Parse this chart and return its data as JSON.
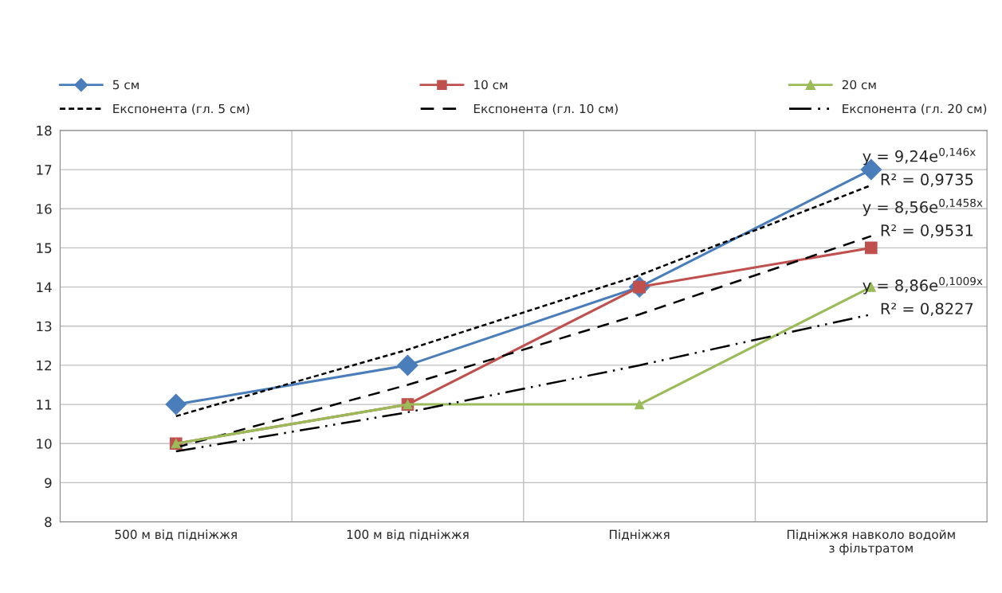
{
  "chart_data": {
    "type": "line",
    "categories": [
      "500 м від підніжжя",
      "100 м від підніжжя",
      "Підніжжя",
      "Підніжжя навколо водойм\nз фільтратом"
    ],
    "series": [
      {
        "name": "5 см",
        "color": "#4a7ebb",
        "values": [
          11,
          12,
          14,
          17
        ],
        "marker": "diamond",
        "line_style": "solid"
      },
      {
        "name": "Експонента (гл. 5 см)",
        "type": "line",
        "color": "#000000",
        "values": [
          10.7,
          12.4,
          14.3,
          16.6
        ],
        "marker": "none",
        "line_style": "dotted"
      },
      {
        "name": "10 см",
        "color": "#c0504d",
        "values": [
          10,
          11,
          14,
          15
        ],
        "marker": "square",
        "line_style": "solid"
      },
      {
        "name": "Експонента (гл. 10 см)",
        "type": "line",
        "color": "#000000",
        "values": [
          9.9,
          11.5,
          13.3,
          15.3
        ],
        "marker": "none",
        "line_style": "dashed"
      },
      {
        "name": "20 см",
        "color": "#9bbb59",
        "values": [
          10,
          11,
          11,
          14
        ],
        "marker": "triangle",
        "line_style": "solid"
      },
      {
        "name": "Експонента (гл. 20 см)",
        "type": "line",
        "color": "#000000",
        "values": [
          9.8,
          10.8,
          12.0,
          13.3
        ],
        "marker": "none",
        "line_style": "dashdot"
      }
    ],
    "ylim": [
      8,
      18
    ],
    "yticks": [
      8,
      9,
      10,
      11,
      12,
      13,
      14,
      15,
      16,
      17,
      18
    ],
    "grid": true,
    "legend": "top",
    "annotations": [
      "y = 9,24e$^{0,146x}$",
      "R² = 0,9735",
      "y = 8,56e$^{0,1458x}$",
      "R² = 0,9531",
      "y = 8,86e$^{0,1009x}$",
      "R² = 0,8227"
    ]
  }
}
